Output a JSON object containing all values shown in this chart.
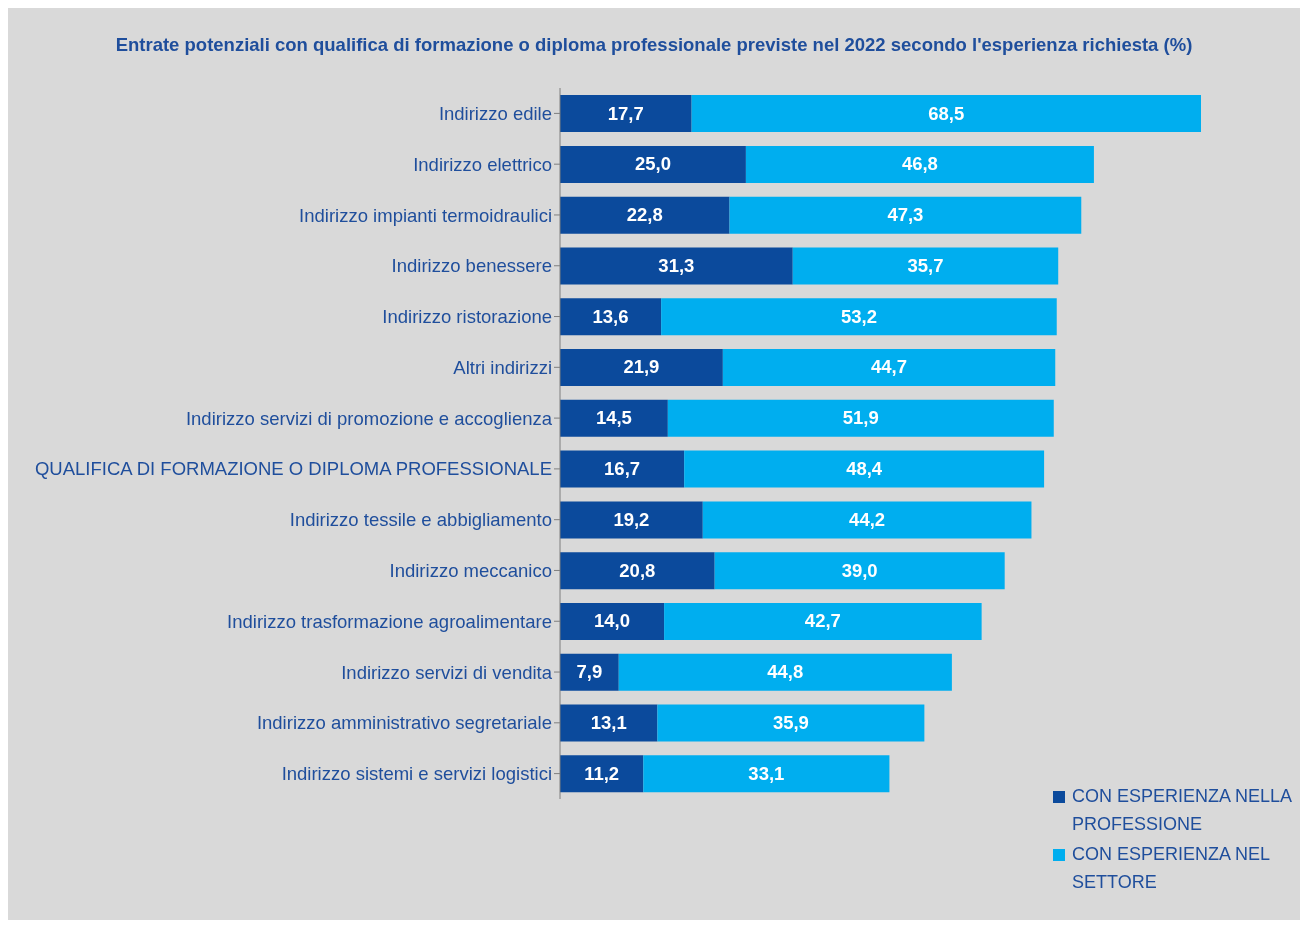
{
  "chart_data": {
    "type": "bar",
    "orientation": "horizontal",
    "stacked": true,
    "title": "Entrate potenziali con qualifica di formazione o diploma professionale previste nel 2022 secondo l'esperienza richiesta (%)",
    "categories": [
      "Indirizzo edile",
      "Indirizzo elettrico",
      "Indirizzo impianti termoidraulici",
      "Indirizzo benessere",
      "Indirizzo ristorazione",
      "Altri indirizzi",
      "Indirizzo servizi di promozione e accoglienza",
      "QUALIFICA DI FORMAZIONE O DIPLOMA PROFESSIONALE",
      "Indirizzo tessile e abbigliamento",
      "Indirizzo meccanico",
      "Indirizzo trasformazione agroalimentare",
      "Indirizzo servizi di vendita",
      "Indirizzo amministrativo segretariale",
      "Indirizzo sistemi e servizi logistici"
    ],
    "series": [
      {
        "name": "CON ESPERIENZA NELLA PROFESSIONE",
        "color": "#0b4a9c",
        "values": [
          17.7,
          25.0,
          22.8,
          31.3,
          13.6,
          21.9,
          14.5,
          16.7,
          19.2,
          20.8,
          14.0,
          7.9,
          13.1,
          11.2
        ],
        "value_labels": [
          "17,7",
          "25,0",
          "22,8",
          "31,3",
          "13,6",
          "21,9",
          "14,5",
          "16,7",
          "19,2",
          "20,8",
          "14,0",
          "7,9",
          "13,1",
          "11,2"
        ]
      },
      {
        "name": "CON ESPERIENZA NEL SETTORE",
        "color": "#00aeef",
        "values": [
          68.5,
          46.8,
          47.3,
          35.7,
          53.2,
          44.7,
          51.9,
          48.4,
          44.2,
          39.0,
          42.7,
          44.8,
          35.9,
          33.1
        ],
        "value_labels": [
          "68,5",
          "46,8",
          "47,3",
          "35,7",
          "53,2",
          "44,7",
          "51,9",
          "48,4",
          "44,2",
          "39,0",
          "42,7",
          "44,8",
          "35,9",
          "33,1"
        ]
      }
    ],
    "grid": false,
    "legend": "bottom right"
  }
}
